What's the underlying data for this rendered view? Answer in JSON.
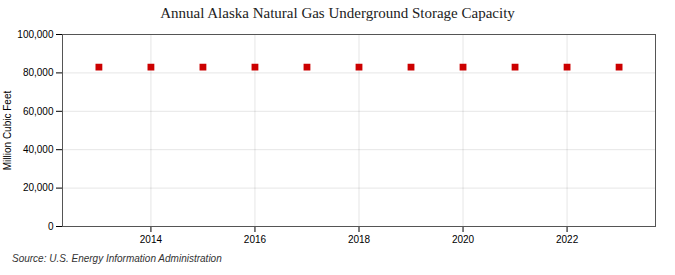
{
  "chart_data": {
    "type": "scatter",
    "title": "Annual Alaska Natural Gas Underground Storage Capacity",
    "ylabel": "Million Cubic Feet",
    "annotations": [
      "Source: U.S. Energy Information Administration"
    ],
    "x": [
      2013,
      2014,
      2015,
      2016,
      2017,
      2018,
      2019,
      2020,
      2021,
      2022,
      2023
    ],
    "values": [
      83000,
      83000,
      83000,
      83000,
      83000,
      83000,
      83000,
      83000,
      83000,
      83000,
      83000
    ],
    "color": "#cc0000",
    "marker": "square",
    "xlim": [
      2012.3,
      2023.7
    ],
    "ylim": [
      0,
      100000
    ],
    "xticks": [
      2014,
      2016,
      2018,
      2020,
      2022
    ],
    "yticks": [
      0,
      {
        "value": 20000,
        "label": "20,000"
      },
      {
        "value": 40000,
        "label": "40,000"
      },
      {
        "value": 60000,
        "label": "60,000"
      },
      {
        "value": 80000,
        "label": "80,000"
      },
      {
        "value": 100000,
        "label": "100,000"
      }
    ],
    "grid": true
  }
}
